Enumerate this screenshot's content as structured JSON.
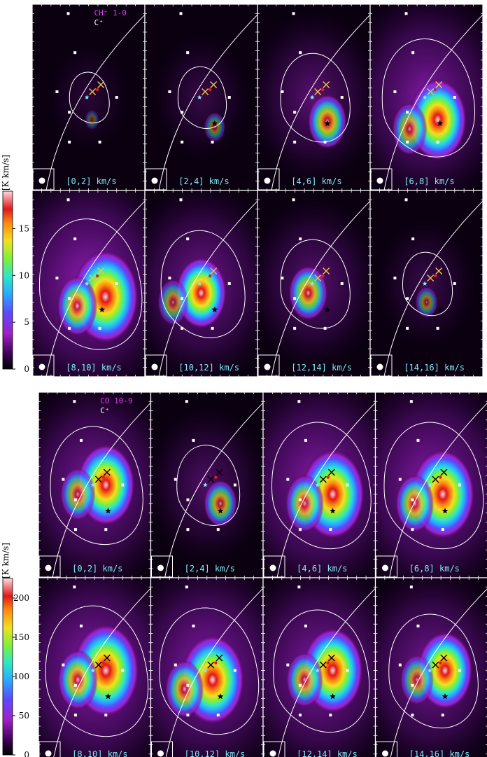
{
  "chart_data": [
    {
      "type": "heatmap",
      "title_line1": "CH⁺ 1-0",
      "title_line2": "C⁺",
      "colorbar_label": "[K km/s]",
      "colorbar_range": [
        0,
        19
      ],
      "colorbar_ticks": [
        "0",
        "5",
        "10",
        "15"
      ],
      "panels": [
        {
          "label": "[0,2] km/s",
          "peak": 0.05,
          "cx": 0.53,
          "cy": 0.62
        },
        {
          "label": "[2,4] km/s",
          "peak": 0.18,
          "cx": 0.62,
          "cy": 0.66
        },
        {
          "label": "[4,6] km/s",
          "peak": 0.5,
          "cx": 0.62,
          "cy": 0.63
        },
        {
          "label": "[6,8] km/s",
          "peak": 0.85,
          "cx": 0.6,
          "cy": 0.62
        },
        {
          "label": "[8,10] km/s",
          "peak": 1.0,
          "cx": 0.65,
          "cy": 0.57
        },
        {
          "label": "[10,12] km/s",
          "peak": 0.72,
          "cx": 0.5,
          "cy": 0.55
        },
        {
          "label": "[12,14] km/s",
          "peak": 0.5,
          "cx": 0.45,
          "cy": 0.55
        },
        {
          "label": "[14,16] km/s",
          "peak": 0.2,
          "cx": 0.5,
          "cy": 0.6
        }
      ]
    },
    {
      "type": "heatmap",
      "title_line1": "CO 10-9",
      "title_line2": "C⁺",
      "colorbar_label": "[K km/s]",
      "colorbar_range": [
        0,
        225
      ],
      "colorbar_ticks": [
        "0",
        "50",
        "100",
        "150",
        "200"
      ],
      "panels": [
        {
          "label": "[0,2] km/s",
          "peak": 0.85,
          "cx": 0.6,
          "cy": 0.5
        },
        {
          "label": "[2,4] km/s",
          "peak": 0.4,
          "cx": 0.62,
          "cy": 0.6
        },
        {
          "label": "[4,6] km/s",
          "peak": 0.95,
          "cx": 0.62,
          "cy": 0.55
        },
        {
          "label": "[6,8] km/s",
          "peak": 0.95,
          "cx": 0.6,
          "cy": 0.55
        },
        {
          "label": "[8,10] km/s",
          "peak": 1.0,
          "cx": 0.6,
          "cy": 0.5
        },
        {
          "label": "[10,12] km/s",
          "peak": 0.95,
          "cx": 0.55,
          "cy": 0.55
        },
        {
          "label": "[12,14] km/s",
          "peak": 0.9,
          "cx": 0.62,
          "cy": 0.5
        },
        {
          "label": "[14,16] km/s",
          "peak": 0.8,
          "cx": 0.62,
          "cy": 0.5
        }
      ]
    }
  ],
  "colors": {
    "frame": "#ffffff",
    "contour": "#ffffff",
    "label": "#7fe9f2",
    "title_ch": "#e13cf0",
    "cross_yellow": "#f5c542",
    "cross_red": "#e02020",
    "star_cyan": "#8ae8f5"
  }
}
